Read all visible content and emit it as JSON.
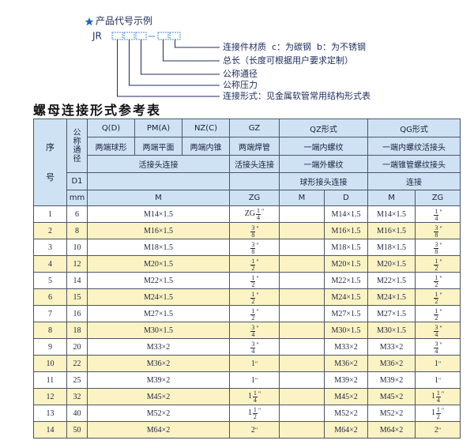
{
  "example": {
    "title": "产品代号示例",
    "code": "JR",
    "labels": [
      "连接件材质  c：为碳钢  b：为不锈钢",
      "总长（长度可根据用户要求定制）",
      "公称通径",
      "公称压力",
      "连接形式：见金属软管常用结构形式表"
    ]
  },
  "table": {
    "title": "螺母连接形式参考表",
    "header": {
      "no": "序号",
      "dn": "公称通径",
      "d1": "D1",
      "mm": "mm",
      "codes": [
        "Q(D)",
        "PM(A)",
        "NZ(C)",
        "GZ",
        "QZ形式",
        "QG形式"
      ],
      "descs": [
        "两端球形",
        "两端平面",
        "两端内锥",
        "两端焊管",
        "一端内螺纹",
        "一端内螺纹活接头"
      ],
      "joints": [
        "活接头连接",
        "活接头连接",
        "一端外螺纹",
        "一端锥管螺纹接头"
      ],
      "joints2": [
        "球形接头连接",
        "连接"
      ],
      "units": [
        "M",
        "ZG",
        "M",
        "D",
        "M",
        "ZG"
      ]
    },
    "rows": [
      {
        "no": 1,
        "dn": 6,
        "m": "M14×1.5",
        "zg": {
          "prefix": "ZG",
          "num": 1,
          "den": 4,
          "unit": "\""
        },
        "qz_d": "M14×1.5",
        "qg_m": "M14×1.5",
        "qg_zg": {
          "num": 1,
          "den": 4,
          "unit": "\""
        }
      },
      {
        "no": 2,
        "dn": 8,
        "m": "M16×1.5",
        "zg": {
          "num": 3,
          "den": 8,
          "unit": "\""
        },
        "qz_d": "M16×1.5",
        "qg_m": "M16×1.5",
        "qg_zg": {
          "num": 3,
          "den": 8,
          "unit": "\""
        }
      },
      {
        "no": 3,
        "dn": 10,
        "m": "M18×1.5",
        "zg": {
          "num": 3,
          "den": 8,
          "unit": "\""
        },
        "qz_d": "M18×1.5",
        "qg_m": "M18×1.5",
        "qg_zg": {
          "num": 3,
          "den": 8,
          "unit": "\""
        }
      },
      {
        "no": 4,
        "dn": 12,
        "m": "M20×1.5",
        "zg": {
          "num": 1,
          "den": 2,
          "unit": "\""
        },
        "qz_d": "M20×1.5",
        "qg_m": "M20×1.5",
        "qg_zg": {
          "num": 1,
          "den": 2,
          "unit": "\""
        }
      },
      {
        "no": 5,
        "dn": 14,
        "m": "M22×1.5",
        "zg": {
          "num": 1,
          "den": 2,
          "unit": "\""
        },
        "qz_d": "M22×1.5",
        "qg_m": "M22×1.5",
        "qg_zg": {
          "num": 1,
          "den": 2,
          "unit": "\""
        }
      },
      {
        "no": 6,
        "dn": 15,
        "m": "M24×1.5",
        "zg": {
          "num": 1,
          "den": 2,
          "unit": "\""
        },
        "qz_d": "M24×1.5",
        "qg_m": "M24×1.5",
        "qg_zg": {
          "num": 1,
          "den": 2,
          "unit": "\""
        }
      },
      {
        "no": 7,
        "dn": 16,
        "m": "M27×1.5",
        "zg": {
          "num": 1,
          "den": 2,
          "unit": "\""
        },
        "qz_d": "M27×1.5",
        "qg_m": "M27×1.5",
        "qg_zg": {
          "num": 1,
          "den": 2,
          "unit": "\""
        }
      },
      {
        "no": 8,
        "dn": 18,
        "m": "M30×1.5",
        "zg": {
          "num": 3,
          "den": 4,
          "unit": "\""
        },
        "qz_d": "M30×1.5",
        "qg_m": "M30×1.5",
        "qg_zg": {
          "num": 3,
          "den": 4,
          "unit": "\""
        }
      },
      {
        "no": 9,
        "dn": 20,
        "m": "M33×2",
        "zg": {
          "num": 3,
          "den": 4,
          "unit": "\""
        },
        "qz_d": "M33×2",
        "qg_m": "M33×2",
        "qg_zg": {
          "num": 3,
          "den": 4,
          "unit": "\""
        }
      },
      {
        "no": 10,
        "dn": 22,
        "m": "M36×2",
        "zg": {
          "whole": 1,
          "unit": "\""
        },
        "qz_d": "M36×2",
        "qg_m": "M36×2",
        "qg_zg": {
          "whole": 1,
          "unit": "\""
        }
      },
      {
        "no": 11,
        "dn": 25,
        "m": "M39×2",
        "zg": {
          "whole": 1,
          "unit": "\""
        },
        "qz_d": "M39×2",
        "qg_m": "M39×2",
        "qg_zg": {
          "whole": 1,
          "unit": "\""
        }
      },
      {
        "no": 12,
        "dn": 32,
        "m": "M45×2",
        "zg": {
          "whole": 1,
          "num": 1,
          "den": 4,
          "unit": "\""
        },
        "qz_d": "M45×2",
        "qg_m": "M45×2",
        "qg_zg": {
          "whole": 1,
          "num": 1,
          "den": 4,
          "unit": "\""
        }
      },
      {
        "no": 13,
        "dn": 40,
        "m": "M52×2",
        "zg": {
          "whole": 1,
          "num": 1,
          "den": 2,
          "unit": "\""
        },
        "qz_d": "M52×2",
        "qg_m": "M52×2",
        "qg_zg": {
          "whole": 1,
          "num": 1,
          "den": 2,
          "unit": "\""
        }
      },
      {
        "no": 14,
        "dn": 50,
        "m": "M64×2",
        "zg": {
          "whole": 2,
          "unit": "\""
        },
        "qz_d": "M64×2",
        "qg_m": "M64×2",
        "qg_zg": {
          "whole": 2,
          "unit": "\""
        }
      }
    ]
  }
}
